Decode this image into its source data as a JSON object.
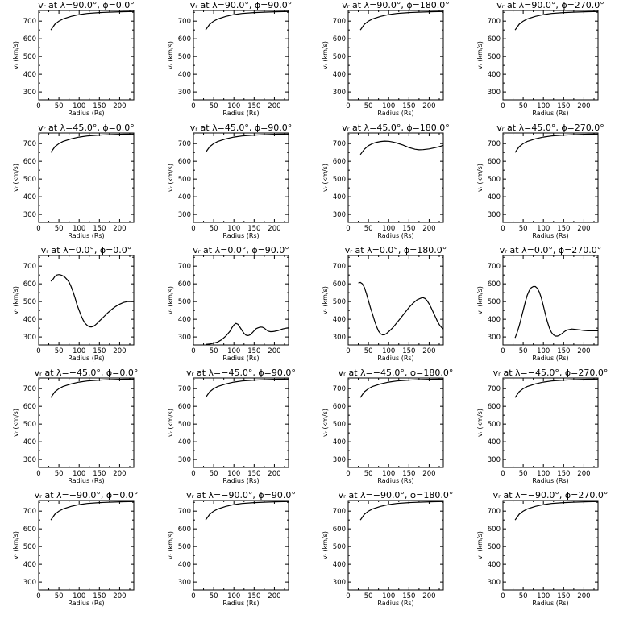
{
  "chart_data": [
    {
      "type": "line",
      "title": "vᵣ at λ=90.0°, ϕ=0.0°",
      "xlabel": "Radius (Rs)",
      "ylabel": "vᵣ (km/s)",
      "xlim": [
        0,
        235
      ],
      "ylim": [
        255,
        760
      ],
      "xticks": [
        0,
        50,
        100,
        150,
        200
      ],
      "yticks": [
        300,
        400,
        500,
        600,
        700
      ],
      "grid": false,
      "x": [
        30,
        40,
        50,
        60,
        80,
        100,
        120,
        150,
        180,
        210,
        235
      ],
      "y": [
        650,
        682,
        700,
        712,
        727,
        737,
        743,
        748,
        751,
        753,
        754
      ]
    },
    {
      "type": "line",
      "title": "vᵣ at λ=90.0°, ϕ=90.0°",
      "xlabel": "Radius (Rs)",
      "ylabel": "vᵣ (km/s)",
      "xlim": [
        0,
        235
      ],
      "ylim": [
        255,
        760
      ],
      "xticks": [
        0,
        50,
        100,
        150,
        200
      ],
      "yticks": [
        300,
        400,
        500,
        600,
        700
      ],
      "grid": false,
      "x": [
        30,
        40,
        50,
        60,
        80,
        100,
        120,
        150,
        180,
        210,
        235
      ],
      "y": [
        650,
        682,
        700,
        712,
        727,
        737,
        743,
        748,
        751,
        753,
        754
      ]
    },
    {
      "type": "line",
      "title": "vᵣ at λ=90.0°, ϕ=180.0°",
      "xlabel": "Radius (Rs)",
      "ylabel": "vᵣ (km/s)",
      "xlim": [
        0,
        235
      ],
      "ylim": [
        255,
        760
      ],
      "xticks": [
        0,
        50,
        100,
        150,
        200
      ],
      "yticks": [
        300,
        400,
        500,
        600,
        700
      ],
      "grid": false,
      "x": [
        30,
        40,
        50,
        60,
        80,
        100,
        120,
        150,
        180,
        210,
        235
      ],
      "y": [
        650,
        682,
        700,
        712,
        727,
        737,
        743,
        748,
        751,
        753,
        754
      ]
    },
    {
      "type": "line",
      "title": "vᵣ at λ=90.0°, ϕ=270.0°",
      "xlabel": "Radius (Rs)",
      "ylabel": "vᵣ (km/s)",
      "xlim": [
        0,
        235
      ],
      "ylim": [
        255,
        760
      ],
      "xticks": [
        0,
        50,
        100,
        150,
        200
      ],
      "yticks": [
        300,
        400,
        500,
        600,
        700
      ],
      "grid": false,
      "x": [
        30,
        40,
        50,
        60,
        80,
        100,
        120,
        150,
        180,
        210,
        235
      ],
      "y": [
        650,
        682,
        700,
        712,
        727,
        737,
        743,
        748,
        751,
        753,
        754
      ]
    },
    {
      "type": "line",
      "title": "vᵣ at λ=45.0°, ϕ=0.0°",
      "xlabel": "Radius (Rs)",
      "ylabel": "vᵣ (km/s)",
      "xlim": [
        0,
        235
      ],
      "ylim": [
        255,
        760
      ],
      "xticks": [
        0,
        50,
        100,
        150,
        200
      ],
      "yticks": [
        300,
        400,
        500,
        600,
        700
      ],
      "grid": false,
      "x": [
        30,
        40,
        50,
        60,
        80,
        100,
        120,
        150,
        180,
        210,
        235
      ],
      "y": [
        650,
        682,
        700,
        712,
        727,
        737,
        743,
        748,
        751,
        753,
        754
      ]
    },
    {
      "type": "line",
      "title": "vᵣ at λ=45.0°, ϕ=90.0°",
      "xlabel": "Radius (Rs)",
      "ylabel": "vᵣ (km/s)",
      "xlim": [
        0,
        235
      ],
      "ylim": [
        255,
        760
      ],
      "xticks": [
        0,
        50,
        100,
        150,
        200
      ],
      "yticks": [
        300,
        400,
        500,
        600,
        700
      ],
      "grid": false,
      "x": [
        30,
        40,
        50,
        60,
        80,
        100,
        120,
        150,
        180,
        210,
        235
      ],
      "y": [
        650,
        682,
        700,
        712,
        727,
        737,
        743,
        748,
        751,
        753,
        754
      ]
    },
    {
      "type": "line",
      "title": "vᵣ at λ=45.0°, ϕ=180.0°",
      "xlabel": "Radius (Rs)",
      "ylabel": "vᵣ (km/s)",
      "xlim": [
        0,
        235
      ],
      "ylim": [
        255,
        760
      ],
      "xticks": [
        0,
        50,
        100,
        150,
        200
      ],
      "yticks": [
        300,
        400,
        500,
        600,
        700
      ],
      "grid": false,
      "x": [
        30,
        40,
        50,
        60,
        70,
        80,
        90,
        100,
        110,
        120,
        135,
        150,
        165,
        175,
        185,
        200,
        215,
        225,
        235
      ],
      "y": [
        638,
        668,
        688,
        700,
        707,
        712,
        714,
        713,
        709,
        703,
        692,
        678,
        668,
        665,
        666,
        670,
        677,
        683,
        690
      ]
    },
    {
      "type": "line",
      "title": "vᵣ at λ=45.0°, ϕ=270.0°",
      "xlabel": "Radius (Rs)",
      "ylabel": "vᵣ (km/s)",
      "xlim": [
        0,
        235
      ],
      "ylim": [
        255,
        760
      ],
      "xticks": [
        0,
        50,
        100,
        150,
        200
      ],
      "yticks": [
        300,
        400,
        500,
        600,
        700
      ],
      "grid": false,
      "x": [
        30,
        40,
        50,
        60,
        80,
        100,
        120,
        150,
        180,
        210,
        235
      ],
      "y": [
        650,
        682,
        700,
        712,
        727,
        737,
        743,
        748,
        751,
        753,
        754
      ]
    },
    {
      "type": "line",
      "title": "vᵣ at λ=0.0°, ϕ=0.0°",
      "xlabel": "Radius (Rs)",
      "ylabel": "vᵣ (km/s)",
      "xlim": [
        0,
        235
      ],
      "ylim": [
        255,
        760
      ],
      "xticks": [
        0,
        50,
        100,
        150,
        200
      ],
      "yticks": [
        300,
        400,
        500,
        600,
        700
      ],
      "grid": false,
      "x": [
        30,
        35,
        40,
        45,
        50,
        55,
        60,
        65,
        70,
        75,
        80,
        85,
        90,
        95,
        100,
        105,
        110,
        115,
        120,
        125,
        130,
        135,
        140,
        145,
        150,
        160,
        170,
        180,
        190,
        200,
        210,
        220,
        230,
        235
      ],
      "y": [
        615,
        625,
        642,
        650,
        652,
        650,
        645,
        637,
        625,
        610,
        585,
        555,
        520,
        480,
        450,
        420,
        395,
        377,
        365,
        358,
        357,
        360,
        368,
        378,
        390,
        412,
        435,
        455,
        472,
        485,
        495,
        500,
        500,
        500
      ]
    },
    {
      "type": "line",
      "title": "vᵣ at λ=0.0°, ϕ=90.0°",
      "xlabel": "Radius (Rs)",
      "ylabel": "vᵣ (km/s)",
      "xlim": [
        0,
        235
      ],
      "ylim": [
        255,
        760
      ],
      "xticks": [
        0,
        50,
        100,
        150,
        200
      ],
      "yticks": [
        300,
        400,
        500,
        600,
        700
      ],
      "grid": false,
      "x": [
        30,
        40,
        50,
        60,
        70,
        80,
        90,
        95,
        100,
        105,
        110,
        115,
        120,
        125,
        130,
        135,
        140,
        145,
        150,
        155,
        160,
        165,
        170,
        175,
        180,
        185,
        190,
        195,
        200,
        210,
        220,
        230,
        235
      ],
      "y": [
        258,
        260,
        265,
        272,
        285,
        305,
        332,
        352,
        368,
        377,
        372,
        355,
        337,
        320,
        310,
        308,
        312,
        323,
        335,
        347,
        352,
        356,
        355,
        350,
        340,
        333,
        330,
        330,
        332,
        337,
        345,
        350,
        352
      ]
    },
    {
      "type": "line",
      "title": "vᵣ at λ=0.0°, ϕ=180.0°",
      "xlabel": "Radius (Rs)",
      "ylabel": "vᵣ (km/s)",
      "xlim": [
        0,
        235
      ],
      "ylim": [
        255,
        760
      ],
      "xticks": [
        0,
        50,
        100,
        150,
        200
      ],
      "yticks": [
        300,
        400,
        500,
        600,
        700
      ],
      "grid": false,
      "x": [
        25,
        30,
        35,
        40,
        45,
        50,
        55,
        60,
        65,
        70,
        75,
        80,
        85,
        90,
        95,
        100,
        110,
        120,
        130,
        140,
        150,
        160,
        170,
        180,
        185,
        190,
        195,
        200,
        205,
        210,
        215,
        220,
        225,
        230,
        235
      ],
      "y": [
        605,
        608,
        600,
        580,
        545,
        505,
        465,
        430,
        393,
        360,
        333,
        318,
        312,
        313,
        320,
        330,
        352,
        380,
        408,
        437,
        466,
        490,
        510,
        520,
        522,
        517,
        505,
        487,
        465,
        440,
        415,
        390,
        370,
        355,
        345
      ]
    },
    {
      "type": "line",
      "title": "vᵣ at λ=0.0°, ϕ=270.0°",
      "xlabel": "Radius (Rs)",
      "ylabel": "vᵣ (km/s)",
      "xlim": [
        0,
        235
      ],
      "ylim": [
        255,
        760
      ],
      "xticks": [
        0,
        50,
        100,
        150,
        200
      ],
      "yticks": [
        300,
        400,
        500,
        600,
        700
      ],
      "grid": false,
      "x": [
        30,
        35,
        40,
        45,
        50,
        55,
        60,
        65,
        70,
        75,
        80,
        85,
        90,
        95,
        100,
        105,
        110,
        115,
        120,
        125,
        130,
        135,
        140,
        145,
        150,
        155,
        160,
        170,
        180,
        190,
        200,
        210,
        220,
        235
      ],
      "y": [
        295,
        325,
        362,
        405,
        450,
        495,
        535,
        562,
        578,
        585,
        585,
        575,
        553,
        520,
        475,
        428,
        385,
        350,
        325,
        312,
        305,
        305,
        310,
        318,
        327,
        335,
        340,
        345,
        343,
        340,
        337,
        335,
        335,
        335
      ]
    },
    {
      "type": "line",
      "title": "vᵣ at λ=−45.0°, ϕ=0.0°",
      "xlabel": "Radius (Rs)",
      "ylabel": "vᵣ (km/s)",
      "xlim": [
        0,
        235
      ],
      "ylim": [
        255,
        760
      ],
      "xticks": [
        0,
        50,
        100,
        150,
        200
      ],
      "yticks": [
        300,
        400,
        500,
        600,
        700
      ],
      "grid": false,
      "x": [
        30,
        40,
        50,
        60,
        80,
        100,
        120,
        150,
        180,
        210,
        235
      ],
      "y": [
        650,
        682,
        700,
        712,
        727,
        737,
        743,
        748,
        751,
        753,
        754
      ]
    },
    {
      "type": "line",
      "title": "vᵣ at λ=−45.0°, ϕ=90.0°",
      "xlabel": "Radius (Rs)",
      "ylabel": "vᵣ (km/s)",
      "xlim": [
        0,
        235
      ],
      "ylim": [
        255,
        760
      ],
      "xticks": [
        0,
        50,
        100,
        150,
        200
      ],
      "yticks": [
        300,
        400,
        500,
        600,
        700
      ],
      "grid": false,
      "x": [
        30,
        40,
        50,
        60,
        80,
        100,
        120,
        150,
        180,
        210,
        235
      ],
      "y": [
        650,
        682,
        700,
        712,
        727,
        737,
        743,
        748,
        751,
        753,
        754
      ]
    },
    {
      "type": "line",
      "title": "vᵣ at λ=−45.0°, ϕ=180.0°",
      "xlabel": "Radius (Rs)",
      "ylabel": "vᵣ (km/s)",
      "xlim": [
        0,
        235
      ],
      "ylim": [
        255,
        760
      ],
      "xticks": [
        0,
        50,
        100,
        150,
        200
      ],
      "yticks": [
        300,
        400,
        500,
        600,
        700
      ],
      "grid": false,
      "x": [
        30,
        40,
        50,
        60,
        80,
        100,
        120,
        150,
        180,
        210,
        235
      ],
      "y": [
        650,
        682,
        700,
        712,
        727,
        737,
        743,
        748,
        751,
        753,
        754
      ]
    },
    {
      "type": "line",
      "title": "vᵣ at λ=−45.0°, ϕ=270.0°",
      "xlabel": "Radius (Rs)",
      "ylabel": "vᵣ (km/s)",
      "xlim": [
        0,
        235
      ],
      "ylim": [
        255,
        760
      ],
      "xticks": [
        0,
        50,
        100,
        150,
        200
      ],
      "yticks": [
        300,
        400,
        500,
        600,
        700
      ],
      "grid": false,
      "x": [
        30,
        40,
        50,
        60,
        80,
        100,
        120,
        150,
        180,
        210,
        235
      ],
      "y": [
        650,
        682,
        700,
        712,
        727,
        737,
        743,
        748,
        751,
        753,
        754
      ]
    },
    {
      "type": "line",
      "title": "vᵣ at λ=−90.0°, ϕ=0.0°",
      "xlabel": "Radius (Rs)",
      "ylabel": "vᵣ (km/s)",
      "xlim": [
        0,
        235
      ],
      "ylim": [
        255,
        760
      ],
      "xticks": [
        0,
        50,
        100,
        150,
        200
      ],
      "yticks": [
        300,
        400,
        500,
        600,
        700
      ],
      "grid": false,
      "x": [
        30,
        40,
        50,
        60,
        80,
        100,
        120,
        150,
        180,
        210,
        235
      ],
      "y": [
        650,
        682,
        700,
        712,
        727,
        737,
        743,
        748,
        751,
        753,
        754
      ]
    },
    {
      "type": "line",
      "title": "vᵣ at λ=−90.0°, ϕ=90.0°",
      "xlabel": "Radius (Rs)",
      "ylabel": "vᵣ (km/s)",
      "xlim": [
        0,
        235
      ],
      "ylim": [
        255,
        760
      ],
      "xticks": [
        0,
        50,
        100,
        150,
        200
      ],
      "yticks": [
        300,
        400,
        500,
        600,
        700
      ],
      "grid": false,
      "x": [
        30,
        40,
        50,
        60,
        80,
        100,
        120,
        150,
        180,
        210,
        235
      ],
      "y": [
        650,
        682,
        700,
        712,
        727,
        737,
        743,
        748,
        751,
        753,
        754
      ]
    },
    {
      "type": "line",
      "title": "vᵣ at λ=−90.0°, ϕ=180.0°",
      "xlabel": "Radius (Rs)",
      "ylabel": "vᵣ (km/s)",
      "xlim": [
        0,
        235
      ],
      "ylim": [
        255,
        760
      ],
      "xticks": [
        0,
        50,
        100,
        150,
        200
      ],
      "yticks": [
        300,
        400,
        500,
        600,
        700
      ],
      "grid": false,
      "x": [
        30,
        40,
        50,
        60,
        80,
        100,
        120,
        150,
        180,
        210,
        235
      ],
      "y": [
        650,
        682,
        700,
        712,
        727,
        737,
        743,
        748,
        751,
        753,
        754
      ]
    },
    {
      "type": "line",
      "title": "vᵣ at λ=−90.0°, ϕ=270.0°",
      "xlabel": "Radius (Rs)",
      "ylabel": "vᵣ (km/s)",
      "xlim": [
        0,
        235
      ],
      "ylim": [
        255,
        760
      ],
      "xticks": [
        0,
        50,
        100,
        150,
        200
      ],
      "yticks": [
        300,
        400,
        500,
        600,
        700
      ],
      "grid": false,
      "x": [
        30,
        40,
        50,
        60,
        80,
        100,
        120,
        150,
        180,
        210,
        235
      ],
      "y": [
        650,
        682,
        700,
        712,
        727,
        737,
        743,
        748,
        751,
        753,
        754
      ]
    }
  ]
}
